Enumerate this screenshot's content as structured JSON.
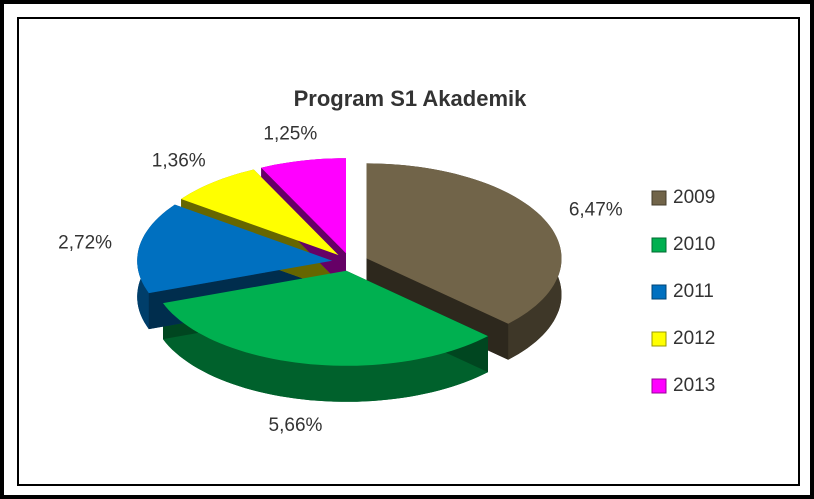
{
  "chart_data": {
    "type": "pie",
    "title": "Program S1 Akademik",
    "categories": [
      "2009",
      "2010",
      "2011",
      "2012",
      "2013"
    ],
    "values": [
      6.47,
      5.66,
      2.72,
      1.36,
      1.25
    ],
    "value_labels": [
      "6,47%",
      "5,66%",
      "2,72%",
      "1,36%",
      "1,25%"
    ],
    "colors": [
      "#716449",
      "#00b050",
      "#0070c0",
      "#ffff00",
      "#ff00ff"
    ],
    "legend": "right"
  }
}
